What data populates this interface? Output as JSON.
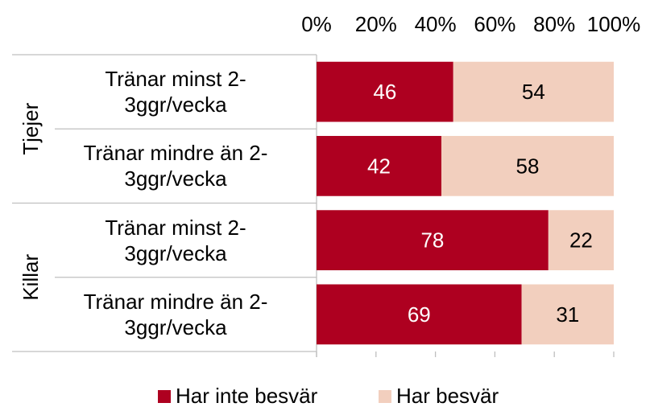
{
  "chart_data": {
    "type": "stacked-bar-horizontal",
    "groups": [
      {
        "name": "Tjejer",
        "categories": [
          "Tränar minst 2-3ggr/vecka",
          "Tränar mindre än 2-3ggr/vecka"
        ]
      },
      {
        "name": "Killar",
        "categories": [
          "Tränar minst 2-3ggr/vecka",
          "Tränar mindre än 2-3ggr/vecka"
        ]
      }
    ],
    "series": [
      {
        "name": "Har inte besvär",
        "color": "#ae0020",
        "label_color": "#ffffff",
        "values": [
          46,
          42,
          78,
          69
        ]
      },
      {
        "name": "Har besvär",
        "color": "#f2cfbe",
        "label_color": "#000000",
        "values": [
          54,
          58,
          22,
          31
        ]
      }
    ],
    "xlim": [
      0,
      100
    ],
    "xticks": [
      {
        "value": 0,
        "label": "0%"
      },
      {
        "value": 20,
        "label": "20%"
      },
      {
        "value": 40,
        "label": "40%"
      },
      {
        "value": 60,
        "label": "60%"
      },
      {
        "value": 80,
        "label": "80%"
      },
      {
        "value": 100,
        "label": "100%"
      }
    ],
    "legend": "bottom"
  }
}
